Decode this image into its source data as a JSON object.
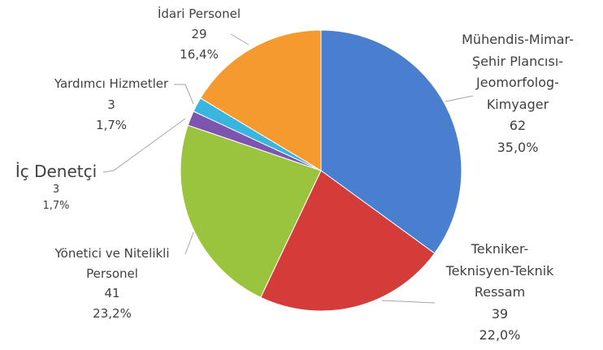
{
  "chart_data": {
    "type": "pie",
    "categories": [
      "Mühendis-Mimar-Şehir Plancısı-Jeomorfolog-Kimyager",
      "Tekniker-Teknisyen-Teknik Ressam",
      "Yönetici ve Nitelikli Personel",
      "İç Denetçi",
      "Yardımcı Hizmetler",
      "İdari Personel"
    ],
    "values": [
      62,
      39,
      41,
      3,
      3,
      29
    ],
    "percents": [
      35.0,
      22.0,
      23.2,
      1.7,
      1.7,
      16.4
    ],
    "percent_labels": [
      "35,0%",
      "22,0%",
      "23,2%",
      "1,7%",
      "1,7%",
      "16,4%"
    ],
    "colors": [
      "#4a7fcf",
      "#d43c3a",
      "#9bc43e",
      "#7d55b0",
      "#3ab5e0",
      "#f49a2e"
    ]
  }
}
